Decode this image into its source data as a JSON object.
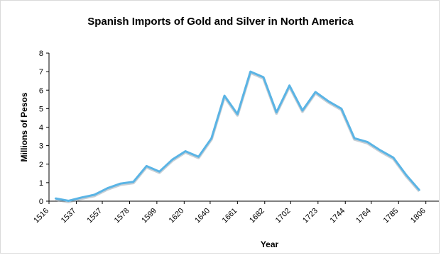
{
  "chart_data": {
    "type": "line",
    "title": "Spanish Imports of Gold and Silver in North America",
    "xlabel": "Year",
    "ylabel": "Millions of Pesos",
    "xlim": [
      1516,
      1816
    ],
    "ylim": [
      0,
      8
    ],
    "y_ticks": [
      0,
      1,
      2,
      3,
      4,
      5,
      6,
      7,
      8
    ],
    "x_ticks": [
      1516,
      1537,
      1557,
      1578,
      1599,
      1620,
      1640,
      1661,
      1682,
      1702,
      1723,
      1744,
      1764,
      1785,
      1806
    ],
    "grid": false,
    "series": [
      {
        "color": "#5ab4e5",
        "x": [
          1521,
          1531,
          1541,
          1551,
          1561,
          1571,
          1581,
          1591,
          1601,
          1611,
          1621,
          1631,
          1641,
          1651,
          1661,
          1671,
          1681,
          1691,
          1701,
          1711,
          1721,
          1731,
          1741,
          1751,
          1761,
          1771,
          1781,
          1791,
          1801,
          1811
        ],
        "values": [
          0.15,
          0.02,
          0.2,
          0.35,
          0.7,
          0.95,
          1.05,
          1.9,
          1.6,
          2.25,
          2.7,
          2.4,
          3.4,
          5.7,
          4.7,
          7.0,
          6.7,
          4.8,
          6.25,
          4.9,
          5.9,
          5.4,
          5.0,
          3.4,
          3.2,
          2.75,
          2.35,
          1.4,
          0.6,
          null
        ]
      }
    ]
  }
}
